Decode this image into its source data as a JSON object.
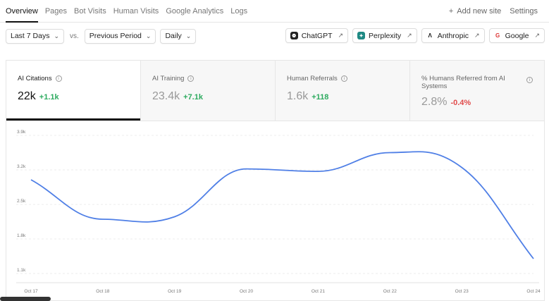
{
  "nav": {
    "tabs": [
      "Overview",
      "Pages",
      "Bot Visits",
      "Human Visits",
      "Google Analytics",
      "Logs"
    ],
    "active_tab": "Overview",
    "add_site": "Add new site",
    "settings": "Settings"
  },
  "controls": {
    "range": "Last 7 Days",
    "vs": "vs.",
    "compare": "Previous Period",
    "granularity": "Daily"
  },
  "sources": [
    {
      "label": "ChatGPT",
      "icon": "chatgpt-icon"
    },
    {
      "label": "Perplexity",
      "icon": "perplexity-icon"
    },
    {
      "label": "Anthropic",
      "icon": "anthropic-icon"
    },
    {
      "label": "Google",
      "icon": "google-icon"
    }
  ],
  "cards": [
    {
      "title": "AI Citations",
      "value": "22k",
      "delta": "+1.1k",
      "trend": "up"
    },
    {
      "title": "AI Training",
      "value": "23.4k",
      "delta": "+7.1k",
      "trend": "up"
    },
    {
      "title": "Human Referrals",
      "value": "1.6k",
      "delta": "+118",
      "trend": "up"
    },
    {
      "title": "% Humans Referred from AI Systems",
      "value": "2.8%",
      "delta": "-0.4%",
      "trend": "down"
    }
  ],
  "colors": {
    "line": "#4f7fe6",
    "up": "#2dab5f",
    "down": "#e04b4b"
  },
  "chart_data": {
    "type": "line",
    "categories": [
      "Oct 17",
      "Oct 18",
      "Oct 19",
      "Oct 20",
      "Oct 21",
      "Oct 22",
      "Oct 23",
      "Oct 24"
    ],
    "values": [
      3000,
      2200,
      2250,
      3220,
      3170,
      3550,
      3250,
      1400
    ],
    "ytick_labels": [
      "3.9k",
      "3.2k",
      "2.5k",
      "1.8k",
      "1.1k"
    ],
    "yticks": [
      3900,
      3200,
      2500,
      1800,
      1100
    ],
    "ylim": [
      1100,
      3900
    ],
    "grid": true
  }
}
